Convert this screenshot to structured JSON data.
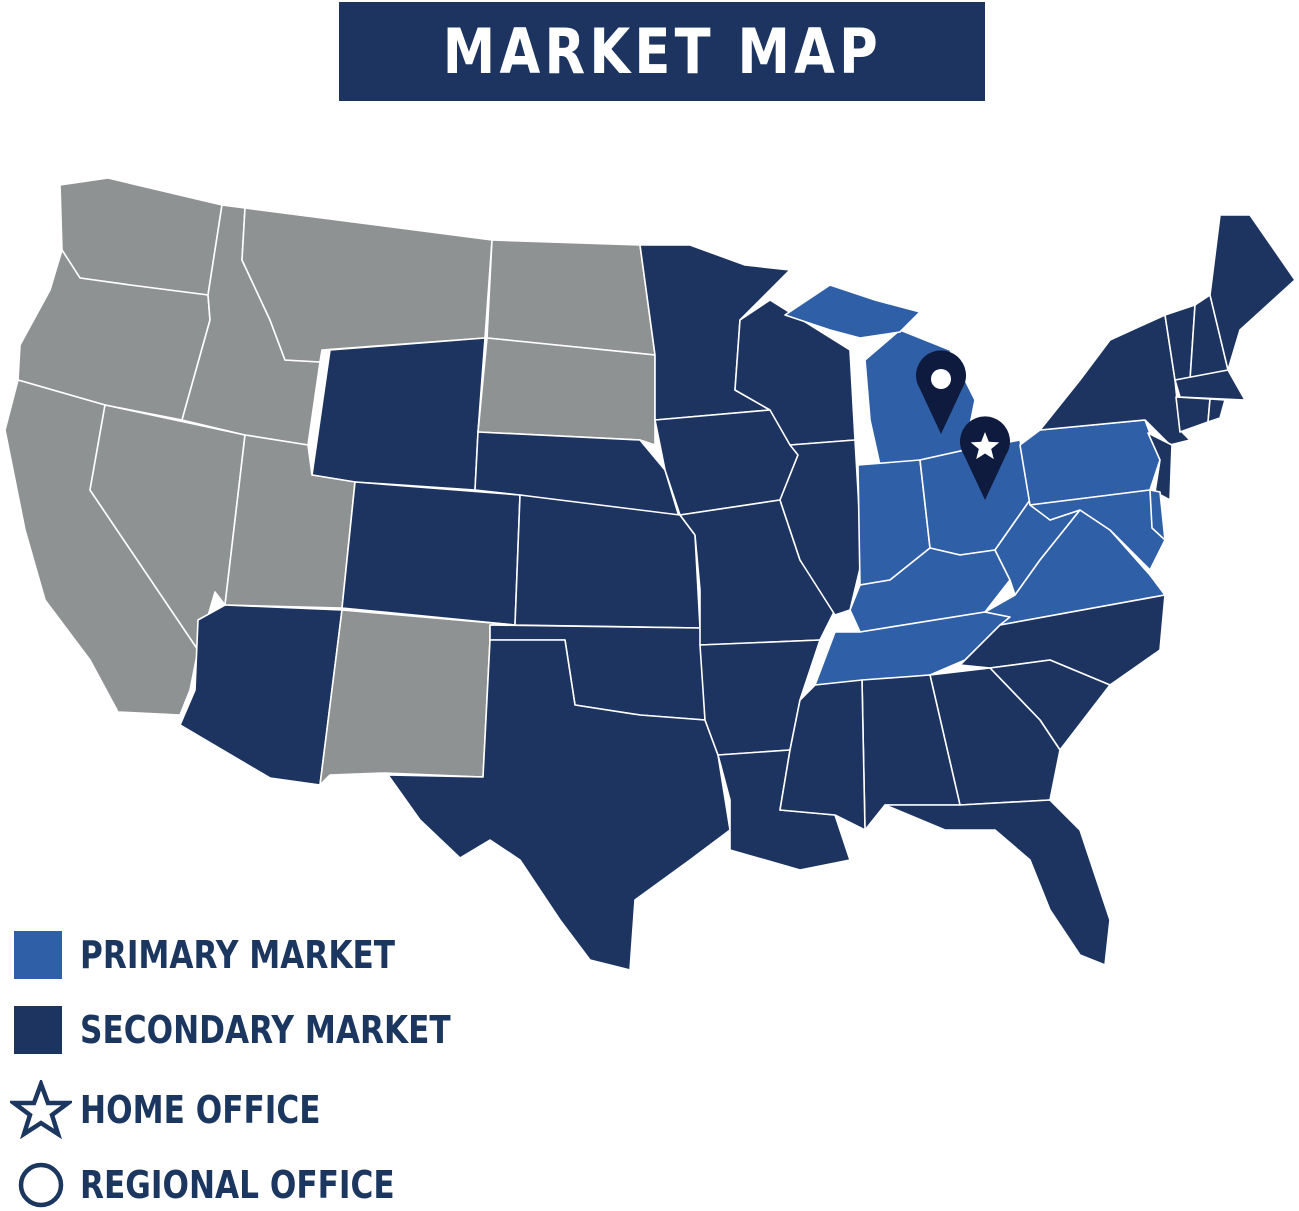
{
  "title": "MARKET MAP",
  "colors": {
    "primary": "#2f5fa7",
    "secondary": "#1d3461",
    "none": "#8f9293",
    "pin": "#0e1a3e",
    "text": "#1b365f"
  },
  "legend": [
    {
      "label": "PRIMARY MARKET",
      "icon": "primary-swatch"
    },
    {
      "label": "SECONDARY MARKET",
      "icon": "secondary-swatch"
    },
    {
      "label": "HOME OFFICE",
      "icon": "star-icon"
    },
    {
      "label": "REGIONAL OFFICE",
      "icon": "circle-icon"
    }
  ],
  "states": {
    "primary": [
      "MI",
      "IN",
      "OH",
      "KY",
      "TN",
      "WV",
      "VA",
      "PA",
      "MD",
      "DE"
    ],
    "secondary": [
      "WY",
      "CO",
      "AZ",
      "TX",
      "NE",
      "KS",
      "OK",
      "MN",
      "IA",
      "MO",
      "AR",
      "LA",
      "WI",
      "IL",
      "MS",
      "AL",
      "GA",
      "FL",
      "SC",
      "NC",
      "NY",
      "NJ",
      "VT",
      "NH",
      "ME",
      "MA",
      "CT",
      "RI"
    ],
    "none": [
      "WA",
      "OR",
      "CA",
      "NV",
      "ID",
      "MT",
      "UT",
      "NM",
      "ND",
      "SD"
    ]
  },
  "offices": [
    {
      "type": "regional",
      "state": "MI",
      "icon": "map-pin-circle-icon"
    },
    {
      "type": "home",
      "state": "OH",
      "icon": "map-pin-star-icon"
    }
  ]
}
